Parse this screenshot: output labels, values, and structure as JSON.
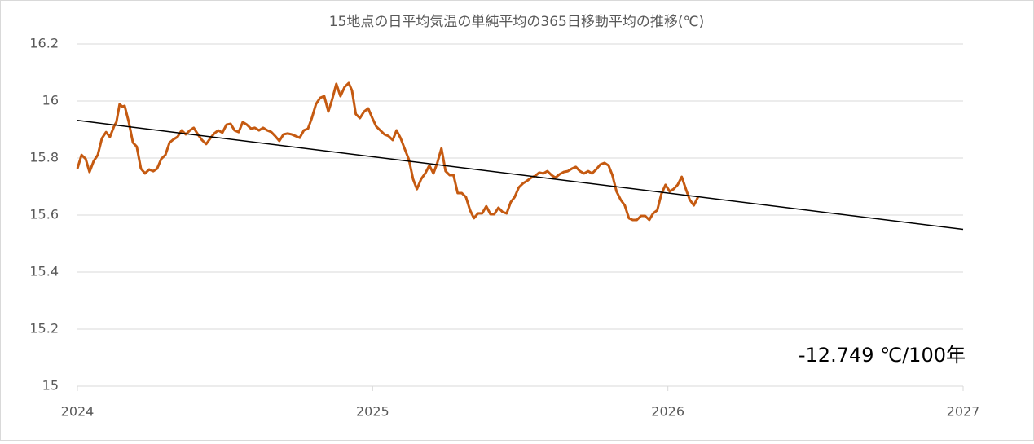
{
  "chart_data": {
    "type": "line",
    "title": "15地点の日平均気温の単純平均の365日移動平均の推移(℃)",
    "annotation": "-12.749 ℃/100年",
    "xlim": [
      2024,
      2027
    ],
    "xticks": [
      2024,
      2025,
      2026,
      2027
    ],
    "ylim": [
      15,
      16.2
    ],
    "yticks": [
      15,
      15.2,
      15.4,
      15.6,
      15.8,
      16,
      16.2
    ],
    "grid": true,
    "series": [
      {
        "color": "#c55a11",
        "x": [
          2024.0,
          2024.014,
          2024.028,
          2024.041,
          2024.055,
          2024.069,
          2024.083,
          2024.097,
          2024.11,
          2024.124,
          2024.132,
          2024.143,
          2024.152,
          2024.16,
          2024.174,
          2024.188,
          2024.201,
          2024.215,
          2024.229,
          2024.243,
          2024.257,
          2024.27,
          2024.284,
          2024.298,
          2024.312,
          2024.326,
          2024.339,
          2024.353,
          2024.367,
          2024.381,
          2024.394,
          2024.408,
          2024.422,
          2024.436,
          2024.45,
          2024.463,
          2024.477,
          2024.491,
          2024.505,
          2024.519,
          2024.532,
          2024.546,
          2024.56,
          2024.574,
          2024.588,
          2024.601,
          2024.615,
          2024.629,
          2024.643,
          2024.657,
          2024.67,
          2024.684,
          2024.698,
          2024.712,
          2024.726,
          2024.739,
          2024.753,
          2024.767,
          2024.781,
          2024.794,
          2024.808,
          2024.822,
          2024.836,
          2024.85,
          2024.863,
          2024.877,
          2024.891,
          2024.905,
          2024.919,
          2024.93,
          2024.943,
          2024.957,
          2024.971,
          2024.985,
          2024.999,
          2025.012,
          2025.026,
          2025.04,
          2025.054,
          2025.068,
          2025.081,
          2025.095,
          2025.109,
          2025.123,
          2025.137,
          2025.15,
          2025.164,
          2025.178,
          2025.192,
          2025.206,
          2025.219,
          2025.233,
          2025.247,
          2025.261,
          2025.274,
          2025.288,
          2025.302,
          2025.316,
          2025.33,
          2025.343,
          2025.357,
          2025.371,
          2025.385,
          2025.399,
          2025.412,
          2025.426,
          2025.44,
          2025.454,
          2025.468,
          2025.481,
          2025.495,
          2025.509,
          2025.523,
          2025.537,
          2025.55,
          2025.564,
          2025.578,
          2025.592,
          2025.606,
          2025.619,
          2025.633,
          2025.647,
          2025.661,
          2025.675,
          2025.688,
          2025.702,
          2025.716,
          2025.73,
          2025.743,
          2025.757,
          2025.771,
          2025.785,
          2025.799,
          2025.812,
          2025.826,
          2025.84,
          2025.854,
          2025.868,
          2025.881,
          2025.895,
          2025.909,
          2025.923,
          2025.937,
          2025.95,
          2025.964,
          2025.978,
          2025.992,
          2026.006,
          2026.019,
          2026.033,
          2026.047,
          2026.061,
          2026.074,
          2026.088,
          2026.102
        ],
        "values": [
          15.763,
          15.811,
          15.797,
          15.751,
          15.789,
          15.811,
          15.869,
          15.891,
          15.874,
          15.911,
          15.926,
          15.989,
          15.98,
          15.983,
          15.926,
          15.854,
          15.84,
          15.763,
          15.746,
          15.76,
          15.754,
          15.763,
          15.797,
          15.811,
          15.854,
          15.866,
          15.874,
          15.897,
          15.883,
          15.897,
          15.906,
          15.883,
          15.863,
          15.849,
          15.869,
          15.886,
          15.897,
          15.889,
          15.917,
          15.92,
          15.897,
          15.891,
          15.926,
          15.917,
          15.903,
          15.906,
          15.897,
          15.906,
          15.897,
          15.891,
          15.877,
          15.86,
          15.883,
          15.886,
          15.883,
          15.877,
          15.871,
          15.897,
          15.903,
          15.94,
          15.989,
          16.011,
          16.017,
          15.963,
          16.006,
          16.06,
          16.017,
          16.049,
          16.063,
          16.037,
          15.954,
          15.94,
          15.963,
          15.974,
          15.94,
          15.911,
          15.897,
          15.883,
          15.877,
          15.863,
          15.897,
          15.869,
          15.831,
          15.794,
          15.726,
          15.691,
          15.726,
          15.746,
          15.774,
          15.746,
          15.783,
          15.834,
          15.754,
          15.74,
          15.74,
          15.677,
          15.677,
          15.663,
          15.617,
          15.589,
          15.606,
          15.606,
          15.631,
          15.603,
          15.603,
          15.626,
          15.611,
          15.606,
          15.646,
          15.663,
          15.697,
          15.711,
          15.72,
          15.731,
          15.737,
          15.749,
          15.746,
          15.754,
          15.74,
          15.731,
          15.743,
          15.751,
          15.754,
          15.763,
          15.769,
          15.754,
          15.746,
          15.754,
          15.746,
          15.76,
          15.777,
          15.783,
          15.774,
          15.74,
          15.683,
          15.654,
          15.634,
          15.589,
          15.583,
          15.583,
          15.597,
          15.597,
          15.583,
          15.606,
          15.617,
          15.674,
          15.706,
          15.683,
          15.691,
          15.706,
          15.734,
          15.691,
          15.654,
          15.634,
          15.663
        ]
      },
      {
        "color": "#000000",
        "x": [
          2024,
          2027
        ],
        "values": [
          15.932,
          15.55
        ]
      }
    ]
  }
}
